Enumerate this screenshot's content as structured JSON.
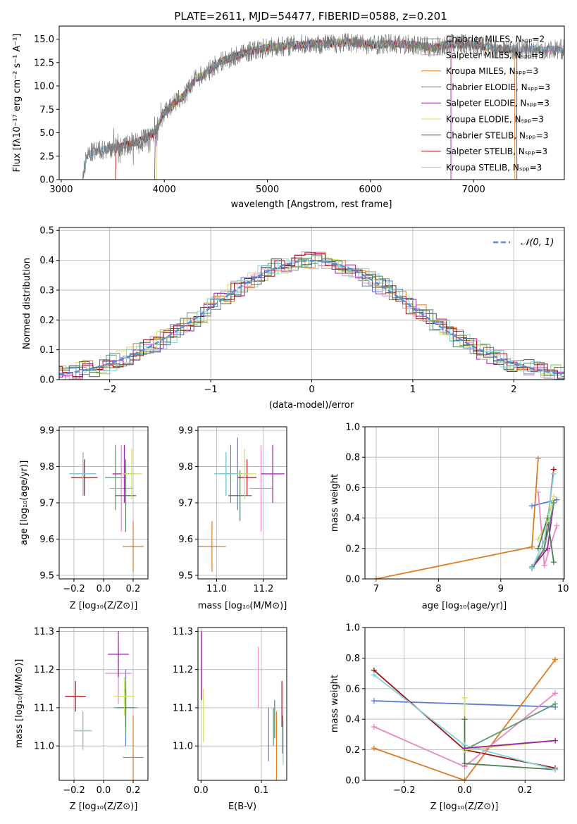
{
  "chart_data": [
    {
      "id": "spectrum",
      "type": "line",
      "title": "PLATE=2611, MJD=54477, FIBERID=0588, z=0.201",
      "xlabel": "wavelength [Angstrom, rest frame]",
      "ylabel": "Flux [fλ10⁻¹⁷ erg cm⁻² s⁻¹ A⁻¹]",
      "xlim": [
        2980,
        7880
      ],
      "ylim": [
        0,
        16.4
      ],
      "xticks": [
        3000,
        4000,
        5000,
        6000,
        7000
      ],
      "yticks": [
        0.0,
        2.5,
        5.0,
        7.5,
        10.0,
        12.5,
        15.0
      ],
      "grid": false,
      "legend_position": "top-right",
      "legend_labels": [
        "Chabrier MILES, Nₛₚₚ=2",
        "Salpeter MILES, Nₛₚₚ=3",
        "Kroupa MILES, Nₛₚₚ=3",
        "Chabrier ELODIE, Nₛₚₚ=3",
        "Salpeter ELODIE, Nₛₚₚ=3",
        "Kroupa ELODIE, Nₛₚₚ=3",
        "Chabrier STELIB, Nₛₚₚ=3",
        "Salpeter STELIB, Nₛₚₚ=3",
        "Kroupa STELIB, Nₛₚₚ=3"
      ],
      "continuum": {
        "x": [
          3200,
          3250,
          3300,
          3400,
          3500,
          3600,
          3700,
          3800,
          3900,
          4000,
          4100,
          4200,
          4300,
          4400,
          4500,
          4600,
          4700,
          4800,
          5000,
          5200,
          5400,
          5600,
          5800,
          6000,
          6200,
          6400,
          6600,
          6800,
          7000,
          7200,
          7400
        ],
        "y": [
          0.0,
          2.5,
          2.9,
          3.2,
          3.4,
          3.6,
          3.9,
          4.3,
          5.0,
          7.2,
          8.2,
          9.0,
          10.8,
          11.3,
          12.3,
          12.8,
          13.2,
          13.6,
          14.1,
          14.3,
          14.5,
          14.5,
          14.7,
          14.4,
          14.5,
          14.4,
          14.1,
          14.5,
          14.4,
          14.0,
          13.9
        ]
      }
    },
    {
      "id": "residuals",
      "type": "line",
      "xlabel": "(data-model)/error",
      "ylabel": "Normed distribution",
      "xlim": [
        -2.5,
        2.5
      ],
      "ylim": [
        0,
        0.51
      ],
      "xticks": [
        -2,
        -1,
        0,
        1,
        2
      ],
      "yticks": [
        0.0,
        0.1,
        0.2,
        0.3,
        0.4,
        0.5
      ],
      "grid": true,
      "legend_position": "top-right",
      "legend_label": "𝒩(0, 1)",
      "gaussian": {
        "mean": 0,
        "sigma": 1
      }
    },
    {
      "id": "age-vs-Z",
      "type": "scatter",
      "xlabel": "Z [log₁₀(Z/Z⊙)]",
      "ylabel": "age  [log₁₀(age/yr)]",
      "xlim": [
        -0.3,
        0.3
      ],
      "ylim": [
        9.49,
        9.91
      ],
      "xticks": [
        -0.2,
        0.0,
        0.2
      ],
      "yticks": [
        9.5,
        9.6,
        9.7,
        9.8,
        9.9
      ],
      "grid": true,
      "points": [
        {
          "x": -0.14,
          "xerr": 0.09,
          "y": 9.78,
          "yerr": 0.06,
          "color": "#5b7fd8"
        },
        {
          "x": 0.2,
          "xerr": 0.07,
          "y": 9.58,
          "yerr": 0.07,
          "color": "#e07b20"
        },
        {
          "x": 0.08,
          "xerr": 0.07,
          "y": 9.77,
          "yerr": 0.09,
          "color": "#5a9a6e"
        },
        {
          "x": 0.12,
          "xerr": 0.08,
          "y": 9.74,
          "yerr": 0.12,
          "color": "#e788c1"
        },
        {
          "x": 0.14,
          "xerr": 0.08,
          "y": 9.78,
          "yerr": 0.08,
          "color": "#a020a8"
        },
        {
          "x": 0.15,
          "xerr": 0.07,
          "y": 9.72,
          "yerr": 0.1,
          "color": "#4c7e56"
        },
        {
          "x": -0.13,
          "xerr": 0.09,
          "y": 9.77,
          "yerr": 0.05,
          "color": "#a01010"
        },
        {
          "x": -0.14,
          "xerr": 0.09,
          "y": 9.78,
          "yerr": 0.06,
          "color": "#555555"
        },
        {
          "x": 0.19,
          "xerr": 0.07,
          "y": 9.78,
          "yerr": 0.07,
          "color": "#d4e060"
        },
        {
          "x": -0.14,
          "xerr": 0.09,
          "y": 9.78,
          "yerr": 0.06,
          "color": "#80d4e0"
        }
      ]
    },
    {
      "id": "age-vs-mass",
      "type": "scatter",
      "xlabel": "mass [log₁₀(M/M⊙)]",
      "ylabel": "",
      "xlim": [
        10.92,
        11.3
      ],
      "ylim": [
        9.49,
        9.91
      ],
      "xticks": [
        11.0,
        11.2
      ],
      "yticks": [
        9.5,
        9.6,
        9.7,
        9.8,
        9.9
      ],
      "grid": true,
      "points": [
        {
          "x": 11.09,
          "xerr": 0.05,
          "y": 9.78,
          "yerr": 0.1,
          "color": "#5b7fd8"
        },
        {
          "x": 10.98,
          "xerr": 0.06,
          "y": 9.58,
          "yerr": 0.07,
          "color": "#e07b20"
        },
        {
          "x": 11.06,
          "xerr": 0.05,
          "y": 9.78,
          "yerr": 0.08,
          "color": "#5a9a6e"
        },
        {
          "x": 11.19,
          "xerr": 0.05,
          "y": 9.74,
          "yerr": 0.12,
          "color": "#e788c1"
        },
        {
          "x": 11.24,
          "xerr": 0.05,
          "y": 9.78,
          "yerr": 0.08,
          "color": "#a020a8"
        },
        {
          "x": 11.1,
          "xerr": 0.05,
          "y": 9.72,
          "yerr": 0.07,
          "color": "#4c7e56"
        },
        {
          "x": 11.13,
          "xerr": 0.04,
          "y": 9.77,
          "yerr": 0.05,
          "color": "#a01010"
        },
        {
          "x": 11.04,
          "xerr": 0.05,
          "y": 9.78,
          "yerr": 0.06,
          "color": "#555555"
        },
        {
          "x": 11.12,
          "xerr": 0.05,
          "y": 9.78,
          "yerr": 0.07,
          "color": "#d4e060"
        },
        {
          "x": 11.04,
          "xerr": 0.05,
          "y": 9.78,
          "yerr": 0.06,
          "color": "#80d4e0"
        }
      ]
    },
    {
      "id": "weight-vs-age",
      "type": "line",
      "xlabel": "age  [log₁₀(age/yr)]",
      "ylabel": "mass weight",
      "xlim": [
        6.82,
        10.02
      ],
      "ylim": [
        0,
        1.0
      ],
      "xticks": [
        7,
        8,
        9,
        10
      ],
      "yticks": [
        0.0,
        0.2,
        0.4,
        0.6,
        0.8,
        1.0
      ],
      "grid": true,
      "series": [
        {
          "color": "#e07b20",
          "x": [
            7.0,
            9.5,
            9.6
          ],
          "y": [
            0.0,
            0.21,
            0.79
          ]
        },
        {
          "color": "#5b7fd8",
          "x": [
            9.5,
            9.9
          ],
          "y": [
            0.48,
            0.52
          ]
        },
        {
          "color": "#a01010",
          "x": [
            9.5,
            9.7,
            9.85
          ],
          "y": [
            0.07,
            0.2,
            0.72
          ]
        },
        {
          "color": "#e788c1",
          "x": [
            9.6,
            9.7,
            9.9
          ],
          "y": [
            0.57,
            0.09,
            0.35
          ]
        },
        {
          "color": "#a020a8",
          "x": [
            9.5,
            9.75,
            9.85
          ],
          "y": [
            0.07,
            0.2,
            0.5
          ]
        },
        {
          "color": "#5a9a6e",
          "x": [
            9.5,
            9.7,
            9.85
          ],
          "y": [
            0.08,
            0.2,
            0.5
          ]
        },
        {
          "color": "#d4e060",
          "x": [
            9.6,
            9.75,
            9.85
          ],
          "y": [
            0.26,
            0.38,
            0.54
          ]
        },
        {
          "color": "#4c7e56",
          "x": [
            9.6,
            9.75,
            9.85
          ],
          "y": [
            0.2,
            0.4,
            0.11
          ]
        },
        {
          "color": "#80d4e0",
          "x": [
            9.5,
            9.7,
            9.85
          ],
          "y": [
            0.07,
            0.25,
            0.69
          ]
        }
      ]
    },
    {
      "id": "mass-vs-Z",
      "type": "scatter",
      "xlabel": "Z [log₁₀(Z/Z⊙)]",
      "ylabel": "mass [log₁₀(M/M⊙)]",
      "xlim": [
        -0.3,
        0.3
      ],
      "ylim": [
        10.91,
        11.31
      ],
      "xticks": [
        -0.2,
        0.0,
        0.2
      ],
      "yticks": [
        11.0,
        11.1,
        11.2,
        11.3
      ],
      "grid": true,
      "points": [
        {
          "x": 0.15,
          "xerr": 0.08,
          "y": 11.1,
          "yerr": 0.1,
          "color": "#5b7fd8"
        },
        {
          "x": 0.2,
          "xerr": 0.07,
          "y": 10.97,
          "yerr": 0.11,
          "color": "#e07b20"
        },
        {
          "x": 0.15,
          "xerr": 0.08,
          "y": 11.1,
          "yerr": 0.07,
          "color": "#5a9a6e"
        },
        {
          "x": 0.1,
          "xerr": 0.09,
          "y": 11.19,
          "yerr": 0.08,
          "color": "#e788c1"
        },
        {
          "x": 0.1,
          "xerr": 0.07,
          "y": 11.24,
          "yerr": 0.06,
          "color": "#a020a8"
        },
        {
          "x": 0.15,
          "xerr": 0.06,
          "y": 11.1,
          "yerr": 0.05,
          "color": "#4c7e56"
        },
        {
          "x": -0.19,
          "xerr": 0.07,
          "y": 11.13,
          "yerr": 0.04,
          "color": "#a01010"
        },
        {
          "x": -0.14,
          "xerr": 0.06,
          "y": 11.04,
          "yerr": 0.05,
          "color": "#555555"
        },
        {
          "x": 0.14,
          "xerr": 0.07,
          "y": 11.13,
          "yerr": 0.05,
          "color": "#d4e060"
        },
        {
          "x": -0.14,
          "xerr": 0.06,
          "y": 11.04,
          "yerr": 0.05,
          "color": "#80d4e0"
        }
      ]
    },
    {
      "id": "mass-vs-EBV",
      "type": "scatter",
      "xlabel": "E(B-V)",
      "ylabel": "",
      "xlim": [
        -0.005,
        0.142
      ],
      "ylim": [
        10.91,
        11.31
      ],
      "xticks": [
        0.0,
        0.1
      ],
      "yticks": [
        11.0,
        11.1,
        11.2,
        11.3
      ],
      "grid": true,
      "points": [
        {
          "x": 0.112,
          "y": 11.03,
          "yerr": 0.07,
          "color": "#5b7fd8"
        },
        {
          "x": 0.125,
          "y": 11.0,
          "yerr": 0.09,
          "color": "#e07b20"
        },
        {
          "x": 0.12,
          "y": 11.05,
          "yerr": 0.05,
          "color": "#5a9a6e"
        },
        {
          "x": 0.095,
          "y": 11.18,
          "yerr": 0.08,
          "color": "#e788c1"
        },
        {
          "x": 0.001,
          "y": 11.21,
          "yerr": 0.09,
          "color": "#a020a8"
        },
        {
          "x": 0.122,
          "y": 11.07,
          "yerr": 0.05,
          "color": "#4c7e56"
        },
        {
          "x": 0.134,
          "y": 11.11,
          "yerr": 0.06,
          "color": "#a01010"
        },
        {
          "x": 0.135,
          "y": 11.03,
          "yerr": 0.05,
          "color": "#555555"
        },
        {
          "x": 0.004,
          "y": 11.08,
          "yerr": 0.07,
          "color": "#d4e060"
        },
        {
          "x": 0.136,
          "y": 11.01,
          "yerr": 0.06,
          "color": "#80d4e0"
        }
      ]
    },
    {
      "id": "weight-vs-Z",
      "type": "line",
      "xlabel": "Z [log₁₀(Z/Z⊙)]",
      "ylabel": "mass weight",
      "xlim": [
        -0.33,
        0.33
      ],
      "ylim": [
        0,
        1.0
      ],
      "xticks": [
        -0.2,
        0.0,
        0.2
      ],
      "yticks": [
        0.0,
        0.2,
        0.4,
        0.6,
        0.8,
        1.0
      ],
      "grid": true,
      "series": [
        {
          "color": "#5b7fd8",
          "x": [
            -0.3,
            0.3
          ],
          "y": [
            0.52,
            0.48
          ]
        },
        {
          "color": "#e07b20",
          "x": [
            -0.3,
            0.0,
            0.3
          ],
          "y": [
            0.21,
            0.0,
            0.79
          ]
        },
        {
          "color": "#a01010",
          "x": [
            -0.3,
            0.0,
            0.3
          ],
          "y": [
            0.72,
            0.2,
            0.08
          ]
        },
        {
          "color": "#e788c1",
          "x": [
            -0.3,
            0.0,
            0.3
          ],
          "y": [
            0.35,
            0.09,
            0.57
          ]
        },
        {
          "color": "#5a9a6e",
          "x": [
            0.0,
            0.3
          ],
          "y": [
            0.2,
            0.5
          ]
        },
        {
          "color": "#d4e060",
          "x": [
            0.0,
            0.0,
            0.3
          ],
          "y": [
            0.54,
            0.2,
            0.26
          ]
        },
        {
          "color": "#4c7e56",
          "x": [
            0.0,
            0.0,
            0.3
          ],
          "y": [
            0.4,
            0.11,
            0.07
          ]
        },
        {
          "color": "#80d4e0",
          "x": [
            -0.3,
            0.0,
            0.3
          ],
          "y": [
            0.69,
            0.23,
            0.07
          ]
        },
        {
          "color": "#a020a8",
          "x": [
            0.0,
            0.3
          ],
          "y": [
            0.21,
            0.26
          ]
        }
      ]
    }
  ],
  "colors": [
    "#5b7fd8",
    "#e07b20",
    "#5a9a6e",
    "#e788c1",
    "#a020a8",
    "#d4e060",
    "#555555",
    "#a01010",
    "#80d4e0",
    "#4c7e56"
  ]
}
